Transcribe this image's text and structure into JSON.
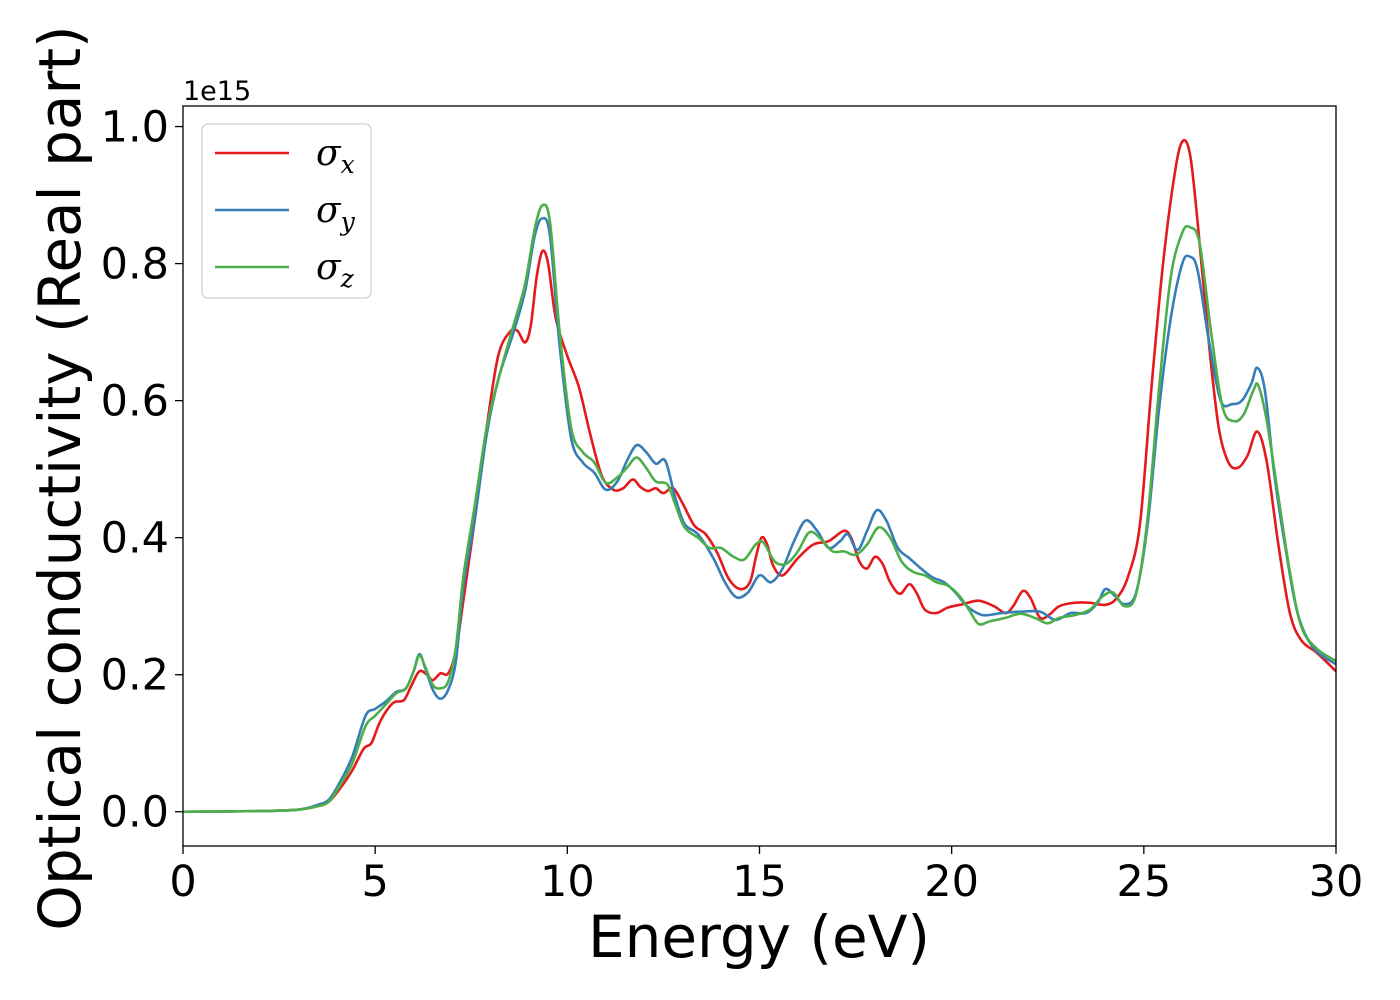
{
  "chart_data": {
    "type": "line",
    "title": "",
    "xlabel": "Energy (eV)",
    "ylabel": "Optical conductivity (Real part)",
    "y_offset_label": "1e15",
    "xlim": [
      0,
      30
    ],
    "ylim": [
      -0.05,
      1.03
    ],
    "xticks": [
      0,
      5,
      10,
      15,
      20,
      25,
      30
    ],
    "xtick_labels": [
      "0",
      "5",
      "10",
      "15",
      "20",
      "25",
      "30"
    ],
    "yticks": [
      0.0,
      0.2,
      0.4,
      0.6,
      0.8,
      1.0
    ],
    "ytick_labels": [
      "0.0",
      "0.2",
      "0.4",
      "0.6",
      "0.8",
      "1.0"
    ],
    "grid": false,
    "legend_position": "top-left",
    "series": [
      {
        "name": "σx",
        "symbol": "σ",
        "subscript": "x",
        "color": "#e41a1c",
        "points": [
          [
            0,
            0
          ],
          [
            2,
            0.001
          ],
          [
            3,
            0.003
          ],
          [
            3.5,
            0.008
          ],
          [
            3.8,
            0.015
          ],
          [
            4.1,
            0.035
          ],
          [
            4.4,
            0.06
          ],
          [
            4.7,
            0.092
          ],
          [
            4.9,
            0.1
          ],
          [
            5.1,
            0.128
          ],
          [
            5.3,
            0.148
          ],
          [
            5.5,
            0.16
          ],
          [
            5.75,
            0.163
          ],
          [
            5.95,
            0.185
          ],
          [
            6.15,
            0.205
          ],
          [
            6.35,
            0.2
          ],
          [
            6.5,
            0.192
          ],
          [
            6.7,
            0.202
          ],
          [
            6.9,
            0.202
          ],
          [
            7.1,
            0.235
          ],
          [
            7.3,
            0.31
          ],
          [
            7.6,
            0.43
          ],
          [
            7.9,
            0.56
          ],
          [
            8.2,
            0.665
          ],
          [
            8.5,
            0.7
          ],
          [
            8.7,
            0.702
          ],
          [
            8.9,
            0.685
          ],
          [
            9.05,
            0.71
          ],
          [
            9.2,
            0.78
          ],
          [
            9.35,
            0.818
          ],
          [
            9.5,
            0.8
          ],
          [
            9.7,
            0.72
          ],
          [
            10,
            0.665
          ],
          [
            10.3,
            0.62
          ],
          [
            10.6,
            0.55
          ],
          [
            10.9,
            0.49
          ],
          [
            11.2,
            0.47
          ],
          [
            11.45,
            0.472
          ],
          [
            11.7,
            0.485
          ],
          [
            11.9,
            0.474
          ],
          [
            12.1,
            0.468
          ],
          [
            12.3,
            0.472
          ],
          [
            12.5,
            0.465
          ],
          [
            12.75,
            0.472
          ],
          [
            13,
            0.45
          ],
          [
            13.3,
            0.418
          ],
          [
            13.6,
            0.405
          ],
          [
            13.9,
            0.378
          ],
          [
            14.2,
            0.34
          ],
          [
            14.5,
            0.325
          ],
          [
            14.75,
            0.335
          ],
          [
            14.9,
            0.37
          ],
          [
            15.05,
            0.4
          ],
          [
            15.2,
            0.39
          ],
          [
            15.35,
            0.36
          ],
          [
            15.6,
            0.345
          ],
          [
            16,
            0.37
          ],
          [
            16.4,
            0.39
          ],
          [
            16.8,
            0.395
          ],
          [
            17.2,
            0.41
          ],
          [
            17.4,
            0.398
          ],
          [
            17.6,
            0.365
          ],
          [
            17.8,
            0.355
          ],
          [
            18,
            0.372
          ],
          [
            18.2,
            0.362
          ],
          [
            18.4,
            0.335
          ],
          [
            18.65,
            0.318
          ],
          [
            18.9,
            0.332
          ],
          [
            19.1,
            0.318
          ],
          [
            19.3,
            0.295
          ],
          [
            19.6,
            0.29
          ],
          [
            19.9,
            0.298
          ],
          [
            20.3,
            0.303
          ],
          [
            20.7,
            0.308
          ],
          [
            21.1,
            0.3
          ],
          [
            21.4,
            0.29
          ],
          [
            21.6,
            0.3
          ],
          [
            21.85,
            0.322
          ],
          [
            22.05,
            0.312
          ],
          [
            22.3,
            0.283
          ],
          [
            22.55,
            0.288
          ],
          [
            22.8,
            0.3
          ],
          [
            23.2,
            0.305
          ],
          [
            23.6,
            0.305
          ],
          [
            24,
            0.302
          ],
          [
            24.3,
            0.312
          ],
          [
            24.6,
            0.345
          ],
          [
            24.9,
            0.42
          ],
          [
            25.2,
            0.62
          ],
          [
            25.5,
            0.8
          ],
          [
            25.8,
            0.93
          ],
          [
            26,
            0.978
          ],
          [
            26.2,
            0.96
          ],
          [
            26.4,
            0.86
          ],
          [
            26.7,
            0.68
          ],
          [
            26.95,
            0.56
          ],
          [
            27.2,
            0.51
          ],
          [
            27.45,
            0.502
          ],
          [
            27.7,
            0.52
          ],
          [
            27.95,
            0.555
          ],
          [
            28.2,
            0.51
          ],
          [
            28.5,
            0.39
          ],
          [
            28.8,
            0.29
          ],
          [
            29.1,
            0.25
          ],
          [
            29.5,
            0.232
          ],
          [
            30,
            0.205
          ]
        ]
      },
      {
        "name": "σy",
        "symbol": "σ",
        "subscript": "y",
        "color": "#377eb8",
        "points": [
          [
            0,
            0
          ],
          [
            2,
            0.001
          ],
          [
            3,
            0.003
          ],
          [
            3.5,
            0.01
          ],
          [
            3.8,
            0.018
          ],
          [
            4.1,
            0.045
          ],
          [
            4.4,
            0.08
          ],
          [
            4.75,
            0.14
          ],
          [
            5,
            0.15
          ],
          [
            5.3,
            0.162
          ],
          [
            5.55,
            0.175
          ],
          [
            5.8,
            0.18
          ],
          [
            6,
            0.205
          ],
          [
            6.15,
            0.23
          ],
          [
            6.3,
            0.21
          ],
          [
            6.5,
            0.178
          ],
          [
            6.7,
            0.165
          ],
          [
            6.9,
            0.178
          ],
          [
            7.1,
            0.22
          ],
          [
            7.3,
            0.33
          ],
          [
            7.6,
            0.43
          ],
          [
            7.9,
            0.55
          ],
          [
            8.2,
            0.63
          ],
          [
            8.6,
            0.7
          ],
          [
            8.9,
            0.76
          ],
          [
            9.15,
            0.84
          ],
          [
            9.35,
            0.866
          ],
          [
            9.55,
            0.84
          ],
          [
            9.8,
            0.68
          ],
          [
            10.1,
            0.545
          ],
          [
            10.4,
            0.51
          ],
          [
            10.7,
            0.495
          ],
          [
            11,
            0.47
          ],
          [
            11.3,
            0.482
          ],
          [
            11.55,
            0.512
          ],
          [
            11.8,
            0.535
          ],
          [
            12.05,
            0.525
          ],
          [
            12.3,
            0.508
          ],
          [
            12.55,
            0.512
          ],
          [
            12.8,
            0.46
          ],
          [
            13.05,
            0.42
          ],
          [
            13.4,
            0.405
          ],
          [
            13.8,
            0.37
          ],
          [
            14.1,
            0.335
          ],
          [
            14.4,
            0.313
          ],
          [
            14.7,
            0.32
          ],
          [
            15,
            0.345
          ],
          [
            15.3,
            0.335
          ],
          [
            15.6,
            0.355
          ],
          [
            15.9,
            0.395
          ],
          [
            16.2,
            0.425
          ],
          [
            16.5,
            0.41
          ],
          [
            16.8,
            0.385
          ],
          [
            17.1,
            0.395
          ],
          [
            17.3,
            0.405
          ],
          [
            17.55,
            0.382
          ],
          [
            17.8,
            0.41
          ],
          [
            18.05,
            0.44
          ],
          [
            18.3,
            0.425
          ],
          [
            18.6,
            0.385
          ],
          [
            18.9,
            0.37
          ],
          [
            19.2,
            0.355
          ],
          [
            19.5,
            0.342
          ],
          [
            19.8,
            0.335
          ],
          [
            20.1,
            0.32
          ],
          [
            20.4,
            0.3
          ],
          [
            20.8,
            0.287
          ],
          [
            21.3,
            0.29
          ],
          [
            21.8,
            0.292
          ],
          [
            22.3,
            0.292
          ],
          [
            22.7,
            0.28
          ],
          [
            23.1,
            0.29
          ],
          [
            23.5,
            0.29
          ],
          [
            23.8,
            0.305
          ],
          [
            24,
            0.325
          ],
          [
            24.25,
            0.315
          ],
          [
            24.5,
            0.303
          ],
          [
            24.8,
            0.32
          ],
          [
            25.1,
            0.42
          ],
          [
            25.4,
            0.59
          ],
          [
            25.7,
            0.72
          ],
          [
            26,
            0.8
          ],
          [
            26.2,
            0.81
          ],
          [
            26.4,
            0.79
          ],
          [
            26.7,
            0.685
          ],
          [
            27,
            0.6
          ],
          [
            27.3,
            0.595
          ],
          [
            27.55,
            0.6
          ],
          [
            27.8,
            0.625
          ],
          [
            27.95,
            0.648
          ],
          [
            28.15,
            0.615
          ],
          [
            28.4,
            0.49
          ],
          [
            28.7,
            0.38
          ],
          [
            29,
            0.29
          ],
          [
            29.4,
            0.24
          ],
          [
            30,
            0.215
          ]
        ]
      },
      {
        "name": "σz",
        "symbol": "σ",
        "subscript": "z",
        "color": "#4daf4a",
        "points": [
          [
            0,
            0
          ],
          [
            2,
            0.001
          ],
          [
            3,
            0.003
          ],
          [
            3.5,
            0.008
          ],
          [
            3.8,
            0.015
          ],
          [
            4.1,
            0.04
          ],
          [
            4.4,
            0.07
          ],
          [
            4.75,
            0.125
          ],
          [
            5,
            0.14
          ],
          [
            5.3,
            0.158
          ],
          [
            5.55,
            0.173
          ],
          [
            5.8,
            0.18
          ],
          [
            6,
            0.205
          ],
          [
            6.15,
            0.228
          ],
          [
            6.3,
            0.212
          ],
          [
            6.5,
            0.185
          ],
          [
            6.7,
            0.18
          ],
          [
            6.9,
            0.19
          ],
          [
            7.1,
            0.24
          ],
          [
            7.3,
            0.345
          ],
          [
            7.6,
            0.45
          ],
          [
            7.9,
            0.56
          ],
          [
            8.2,
            0.63
          ],
          [
            8.6,
            0.71
          ],
          [
            8.9,
            0.77
          ],
          [
            9.15,
            0.85
          ],
          [
            9.35,
            0.885
          ],
          [
            9.55,
            0.86
          ],
          [
            9.8,
            0.7
          ],
          [
            10.1,
            0.56
          ],
          [
            10.4,
            0.525
          ],
          [
            10.7,
            0.51
          ],
          [
            11,
            0.48
          ],
          [
            11.3,
            0.488
          ],
          [
            11.55,
            0.502
          ],
          [
            11.8,
            0.517
          ],
          [
            12.05,
            0.502
          ],
          [
            12.3,
            0.482
          ],
          [
            12.6,
            0.478
          ],
          [
            12.8,
            0.45
          ],
          [
            13.05,
            0.415
          ],
          [
            13.4,
            0.4
          ],
          [
            13.7,
            0.385
          ],
          [
            14,
            0.385
          ],
          [
            14.3,
            0.373
          ],
          [
            14.6,
            0.368
          ],
          [
            14.9,
            0.39
          ],
          [
            15.1,
            0.393
          ],
          [
            15.4,
            0.365
          ],
          [
            15.7,
            0.362
          ],
          [
            16,
            0.38
          ],
          [
            16.3,
            0.408
          ],
          [
            16.6,
            0.398
          ],
          [
            16.9,
            0.38
          ],
          [
            17.2,
            0.38
          ],
          [
            17.5,
            0.375
          ],
          [
            17.8,
            0.39
          ],
          [
            18.1,
            0.415
          ],
          [
            18.4,
            0.4
          ],
          [
            18.7,
            0.365
          ],
          [
            19,
            0.35
          ],
          [
            19.3,
            0.345
          ],
          [
            19.6,
            0.335
          ],
          [
            19.9,
            0.33
          ],
          [
            20.2,
            0.315
          ],
          [
            20.45,
            0.295
          ],
          [
            20.7,
            0.274
          ],
          [
            21,
            0.278
          ],
          [
            21.4,
            0.283
          ],
          [
            21.8,
            0.289
          ],
          [
            22.2,
            0.282
          ],
          [
            22.5,
            0.275
          ],
          [
            22.8,
            0.283
          ],
          [
            23.2,
            0.287
          ],
          [
            23.6,
            0.295
          ],
          [
            23.9,
            0.313
          ],
          [
            24.2,
            0.32
          ],
          [
            24.5,
            0.3
          ],
          [
            24.8,
            0.318
          ],
          [
            25.1,
            0.43
          ],
          [
            25.4,
            0.62
          ],
          [
            25.7,
            0.78
          ],
          [
            26,
            0.845
          ],
          [
            26.2,
            0.853
          ],
          [
            26.45,
            0.83
          ],
          [
            26.75,
            0.7
          ],
          [
            27.05,
            0.59
          ],
          [
            27.35,
            0.57
          ],
          [
            27.6,
            0.58
          ],
          [
            27.85,
            0.615
          ],
          [
            27.98,
            0.622
          ],
          [
            28.2,
            0.57
          ],
          [
            28.5,
            0.46
          ],
          [
            28.8,
            0.35
          ],
          [
            29.1,
            0.27
          ],
          [
            29.5,
            0.238
          ],
          [
            30,
            0.22
          ]
        ]
      }
    ]
  }
}
